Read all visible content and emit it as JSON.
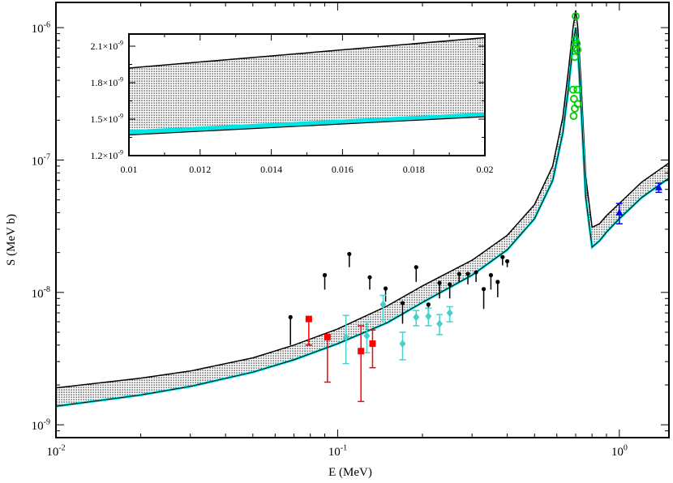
{
  "chart_data": {
    "type": "scatter",
    "xlabel": "E (MeV)",
    "ylabel": "S (MeV b)",
    "xscale": "log",
    "yscale": "log",
    "xlim": [
      0.01,
      1.5
    ],
    "ylim": [
      8e-10,
      1.55e-06
    ],
    "x_tick_labels": [
      {
        "value": 0.01,
        "base": "10",
        "exp": "-2"
      },
      {
        "value": 0.1,
        "base": "10",
        "exp": "-1"
      },
      {
        "value": 1.0,
        "base": "10",
        "exp": "0"
      }
    ],
    "y_tick_labels": [
      {
        "value": 1e-09,
        "base": "10",
        "exp": "-9"
      },
      {
        "value": 1e-08,
        "base": "10",
        "exp": "-8"
      },
      {
        "value": 1e-07,
        "base": "10",
        "exp": "-7"
      },
      {
        "value": 1e-06,
        "base": "10",
        "exp": "-6"
      }
    ],
    "band": {
      "name": "S-factor uncertainty band (dotted)",
      "upper": [
        [
          0.01,
          1.9e-09
        ],
        [
          0.02,
          2.25e-09
        ],
        [
          0.03,
          2.55e-09
        ],
        [
          0.05,
          3.2e-09
        ],
        [
          0.07,
          4e-09
        ],
        [
          0.1,
          5.3e-09
        ],
        [
          0.15,
          7.9e-09
        ],
        [
          0.2,
          1.12e-08
        ],
        [
          0.3,
          1.75e-08
        ],
        [
          0.4,
          2.7e-08
        ],
        [
          0.5,
          4.6e-08
        ],
        [
          0.58,
          9e-08
        ],
        [
          0.63,
          2.1e-07
        ],
        [
          0.66,
          4.8e-07
        ],
        [
          0.685,
          1e-06
        ],
        [
          0.7,
          1.35e-06
        ],
        [
          0.712,
          1e-06
        ],
        [
          0.73,
          4.2e-07
        ],
        [
          0.76,
          7.5e-08
        ],
        [
          0.8,
          3.1e-08
        ],
        [
          0.85,
          3.3e-08
        ],
        [
          0.9,
          3.8e-08
        ],
        [
          1.0,
          4.7e-08
        ],
        [
          1.2,
          6.8e-08
        ],
        [
          1.5,
          9.5e-08
        ]
      ],
      "lower": [
        [
          0.01,
          1.38e-09
        ],
        [
          0.02,
          1.68e-09
        ],
        [
          0.03,
          1.95e-09
        ],
        [
          0.05,
          2.5e-09
        ],
        [
          0.07,
          3.1e-09
        ],
        [
          0.1,
          4.1e-09
        ],
        [
          0.15,
          5.9e-09
        ],
        [
          0.2,
          8.4e-09
        ],
        [
          0.3,
          1.35e-08
        ],
        [
          0.4,
          2.1e-08
        ],
        [
          0.5,
          3.6e-08
        ],
        [
          0.58,
          7e-08
        ],
        [
          0.63,
          1.6e-07
        ],
        [
          0.66,
          3.5e-07
        ],
        [
          0.685,
          7.5e-07
        ],
        [
          0.7,
          1e-06
        ],
        [
          0.712,
          7e-07
        ],
        [
          0.73,
          2.8e-07
        ],
        [
          0.76,
          5.2e-08
        ],
        [
          0.8,
          2.2e-08
        ],
        [
          0.85,
          2.45e-08
        ],
        [
          0.9,
          2.85e-08
        ],
        [
          1.0,
          3.6e-08
        ],
        [
          1.2,
          5.2e-08
        ],
        [
          1.5,
          7.3e-08
        ]
      ]
    },
    "cyan_curve": {
      "name": "lower cyan curve",
      "points": [
        [
          0.01,
          1.38e-09
        ],
        [
          0.02,
          1.68e-09
        ],
        [
          0.03,
          1.95e-09
        ],
        [
          0.05,
          2.5e-09
        ],
        [
          0.07,
          3.1e-09
        ],
        [
          0.1,
          4.1e-09
        ],
        [
          0.15,
          5.9e-09
        ],
        [
          0.2,
          8.4e-09
        ],
        [
          0.3,
          1.35e-08
        ],
        [
          0.4,
          2.1e-08
        ],
        [
          0.5,
          3.6e-08
        ],
        [
          0.58,
          7e-08
        ],
        [
          0.63,
          1.6e-07
        ],
        [
          0.66,
          3.5e-07
        ],
        [
          0.685,
          7.5e-07
        ],
        [
          0.7,
          1e-06
        ],
        [
          0.712,
          7e-07
        ],
        [
          0.73,
          2.8e-07
        ],
        [
          0.76,
          5.2e-08
        ],
        [
          0.8,
          2.2e-08
        ],
        [
          0.85,
          2.45e-08
        ],
        [
          0.9,
          2.85e-08
        ],
        [
          1.0,
          3.6e-08
        ],
        [
          1.2,
          5.2e-08
        ],
        [
          1.5,
          7.3e-08
        ]
      ]
    },
    "series": [
      {
        "name": "black dots",
        "color": "#000000",
        "marker": "dot",
        "points": [
          {
            "x": 0.068,
            "y": 6.5e-09,
            "lo": 4e-09
          },
          {
            "x": 0.09,
            "y": 1.35e-08,
            "lo": 1.05e-08
          },
          {
            "x": 0.11,
            "y": 1.95e-08,
            "lo": 1.55e-08
          },
          {
            "x": 0.13,
            "y": 1.3e-08,
            "lo": 1.05e-08
          },
          {
            "x": 0.148,
            "y": 1.07e-08,
            "lo": 8.5e-09
          },
          {
            "x": 0.17,
            "y": 8.3e-09,
            "lo": 5.8e-09
          },
          {
            "x": 0.19,
            "y": 1.55e-08,
            "lo": 1.2e-08
          },
          {
            "x": 0.21,
            "y": 8.1e-09,
            "lo": 6.2e-09
          },
          {
            "x": 0.23,
            "y": 1.18e-08,
            "lo": 9e-09
          },
          {
            "x": 0.25,
            "y": 1.15e-08,
            "lo": 9e-09
          },
          {
            "x": 0.27,
            "y": 1.38e-08,
            "lo": 1.2e-08
          },
          {
            "x": 0.29,
            "y": 1.38e-08,
            "lo": 1.15e-08
          },
          {
            "x": 0.31,
            "y": 1.42e-08,
            "lo": 1.2e-08
          },
          {
            "x": 0.33,
            "y": 1.06e-08,
            "lo": 7.5e-09
          },
          {
            "x": 0.35,
            "y": 1.35e-08,
            "lo": 1.05e-08
          },
          {
            "x": 0.37,
            "y": 1.2e-08,
            "lo": 9.2e-09
          },
          {
            "x": 0.385,
            "y": 1.85e-08,
            "lo": 1.6e-08
          },
          {
            "x": 0.4,
            "y": 1.72e-08,
            "lo": 1.55e-08
          }
        ]
      },
      {
        "name": "red squares",
        "color": "#ff0000",
        "marker": "square",
        "points": [
          {
            "x": 0.079,
            "y": 6.3e-09,
            "lo": 4e-09,
            "hi": 6.3e-09
          },
          {
            "x": 0.092,
            "y": 4.6e-09,
            "lo": 2.1e-09,
            "hi": 4.6e-09
          },
          {
            "x": 0.121,
            "y": 3.6e-09,
            "lo": 1.5e-09,
            "hi": 5.6e-09
          },
          {
            "x": 0.133,
            "y": 4.1e-09,
            "lo": 2.7e-09,
            "hi": 5.2e-09
          }
        ]
      },
      {
        "name": "turquoise diamonds",
        "color": "#48d1cc",
        "marker": "diamond",
        "points": [
          {
            "x": 0.107,
            "y": 4.6e-09,
            "lo": 2.9e-09,
            "hi": 6.7e-09
          },
          {
            "x": 0.127,
            "y": 4.7e-09,
            "lo": 3.5e-09,
            "hi": 6e-09
          },
          {
            "x": 0.145,
            "y": 8.1e-09,
            "lo": 6.2e-09,
            "hi": 9.5e-09
          },
          {
            "x": 0.17,
            "y": 4.1e-09,
            "lo": 3.1e-09,
            "hi": 5e-09
          },
          {
            "x": 0.19,
            "y": 6.5e-09,
            "lo": 5.6e-09,
            "hi": 7.3e-09
          },
          {
            "x": 0.21,
            "y": 6.6e-09,
            "lo": 5.6e-09,
            "hi": 7.6e-09
          },
          {
            "x": 0.23,
            "y": 5.8e-09,
            "lo": 4.8e-09,
            "hi": 6.8e-09
          },
          {
            "x": 0.25,
            "y": 7e-09,
            "lo": 6e-09,
            "hi": 7.8e-09
          }
        ]
      },
      {
        "name": "green circles",
        "color": "#00cc00",
        "marker": "circle-open",
        "points": [
          {
            "x": 0.7,
            "y": 1.22e-06
          },
          {
            "x": 0.698,
            "y": 8.1e-07
          },
          {
            "x": 0.706,
            "y": 7.6e-07
          },
          {
            "x": 0.692,
            "y": 7e-07
          },
          {
            "x": 0.71,
            "y": 6.8e-07
          },
          {
            "x": 0.695,
            "y": 6e-07
          },
          {
            "x": 0.685,
            "y": 3.4e-07
          },
          {
            "x": 0.71,
            "y": 3.4e-07
          },
          {
            "x": 0.69,
            "y": 2.9e-07
          },
          {
            "x": 0.712,
            "y": 2.65e-07
          },
          {
            "x": 0.695,
            "y": 2.45e-07
          },
          {
            "x": 0.688,
            "y": 2.15e-07
          }
        ]
      },
      {
        "name": "blue triangles",
        "color": "#0000ff",
        "marker": "triangle",
        "points": [
          {
            "x": 1.0,
            "y": 4e-08,
            "lo": 3.3e-08,
            "hi": 4.7e-08
          },
          {
            "x": 1.38,
            "y": 6.2e-08,
            "lo": 5.7e-08,
            "hi": 6.7e-08
          }
        ]
      }
    ],
    "inset": {
      "xlim": [
        0.01,
        0.02
      ],
      "ylim": [
        1.2e-09,
        2.2e-09
      ],
      "x_tick_labels": [
        "0.01",
        "0.012",
        "0.014",
        "0.016",
        "0.018",
        "0.02"
      ],
      "x_tick_values": [
        0.01,
        0.012,
        0.014,
        0.016,
        0.018,
        0.02
      ],
      "y_tick_labels": [
        {
          "value": 1.2e-09,
          "mant": "1.2",
          "base": "×10",
          "exp": "-9"
        },
        {
          "value": 1.5e-09,
          "mant": "1.5",
          "base": "×10",
          "exp": "-9"
        },
        {
          "value": 1.8e-09,
          "mant": "1.8",
          "base": "×10",
          "exp": "-9"
        },
        {
          "value": 2.1e-09,
          "mant": "2.1",
          "base": "×10",
          "exp": "-9"
        }
      ],
      "band_upper": [
        [
          0.01,
          1.92e-09
        ],
        [
          0.02,
          2.17e-09
        ]
      ],
      "band_lower": [
        [
          0.01,
          1.37e-09
        ],
        [
          0.02,
          1.52e-09
        ]
      ],
      "cyan_band": [
        [
          0.01,
          1.37e-09,
          1.41e-09
        ],
        [
          0.02,
          1.52e-09,
          1.555e-09
        ]
      ]
    }
  }
}
